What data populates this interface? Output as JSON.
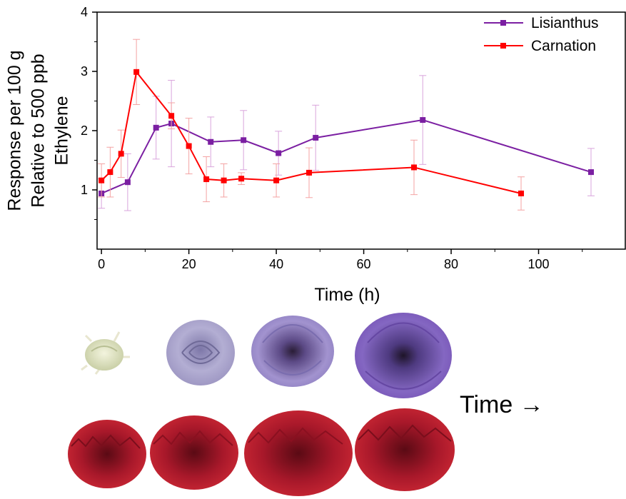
{
  "chart_data": {
    "type": "line",
    "xlabel": "Time (h)",
    "ylabel_lines": [
      "Response per 100 g",
      "Relative to 500 ppb",
      "Ethylene"
    ],
    "xlim": [
      -1,
      120
    ],
    "ylim": [
      0,
      4
    ],
    "xticks": [
      0,
      20,
      40,
      60,
      80,
      100
    ],
    "yticks": [
      1,
      2,
      3,
      4
    ],
    "grid": false,
    "legend_position": "top-right",
    "series": [
      {
        "name": "Lisianthus",
        "color": "#7B1FA2",
        "x": [
          0,
          6,
          12.5,
          16,
          25,
          32.5,
          40.5,
          49,
          73.5,
          112
        ],
        "y": [
          0.94,
          1.13,
          2.05,
          2.12,
          1.81,
          1.84,
          1.62,
          1.88,
          2.18,
          1.3
        ],
        "err": [
          0.25,
          0.48,
          0.53,
          0.73,
          0.42,
          0.5,
          0.37,
          0.55,
          0.75,
          0.4
        ]
      },
      {
        "name": "Carnation",
        "color": "#FF0000",
        "x": [
          0,
          2,
          4.5,
          8,
          16,
          20,
          24,
          28,
          32,
          40,
          47.5,
          71.5,
          96
        ],
        "y": [
          1.16,
          1.3,
          1.61,
          2.99,
          2.25,
          1.74,
          1.18,
          1.16,
          1.19,
          1.16,
          1.29,
          1.38,
          0.94
        ],
        "err": [
          0.28,
          0.42,
          0.4,
          0.55,
          0.22,
          0.47,
          0.38,
          0.28,
          0.1,
          0.28,
          0.42,
          0.46,
          0.28
        ]
      }
    ]
  },
  "figure": {
    "time_label": "Time →",
    "lisianthus_stage_colors": [
      "#D9DDBB",
      "#A29BC4",
      "#8E7FC0",
      "#7E5FB8"
    ],
    "carnation_stage_colors": [
      "#9B1528",
      "#C01B2C",
      "#C8182A",
      "#B0182C"
    ]
  }
}
